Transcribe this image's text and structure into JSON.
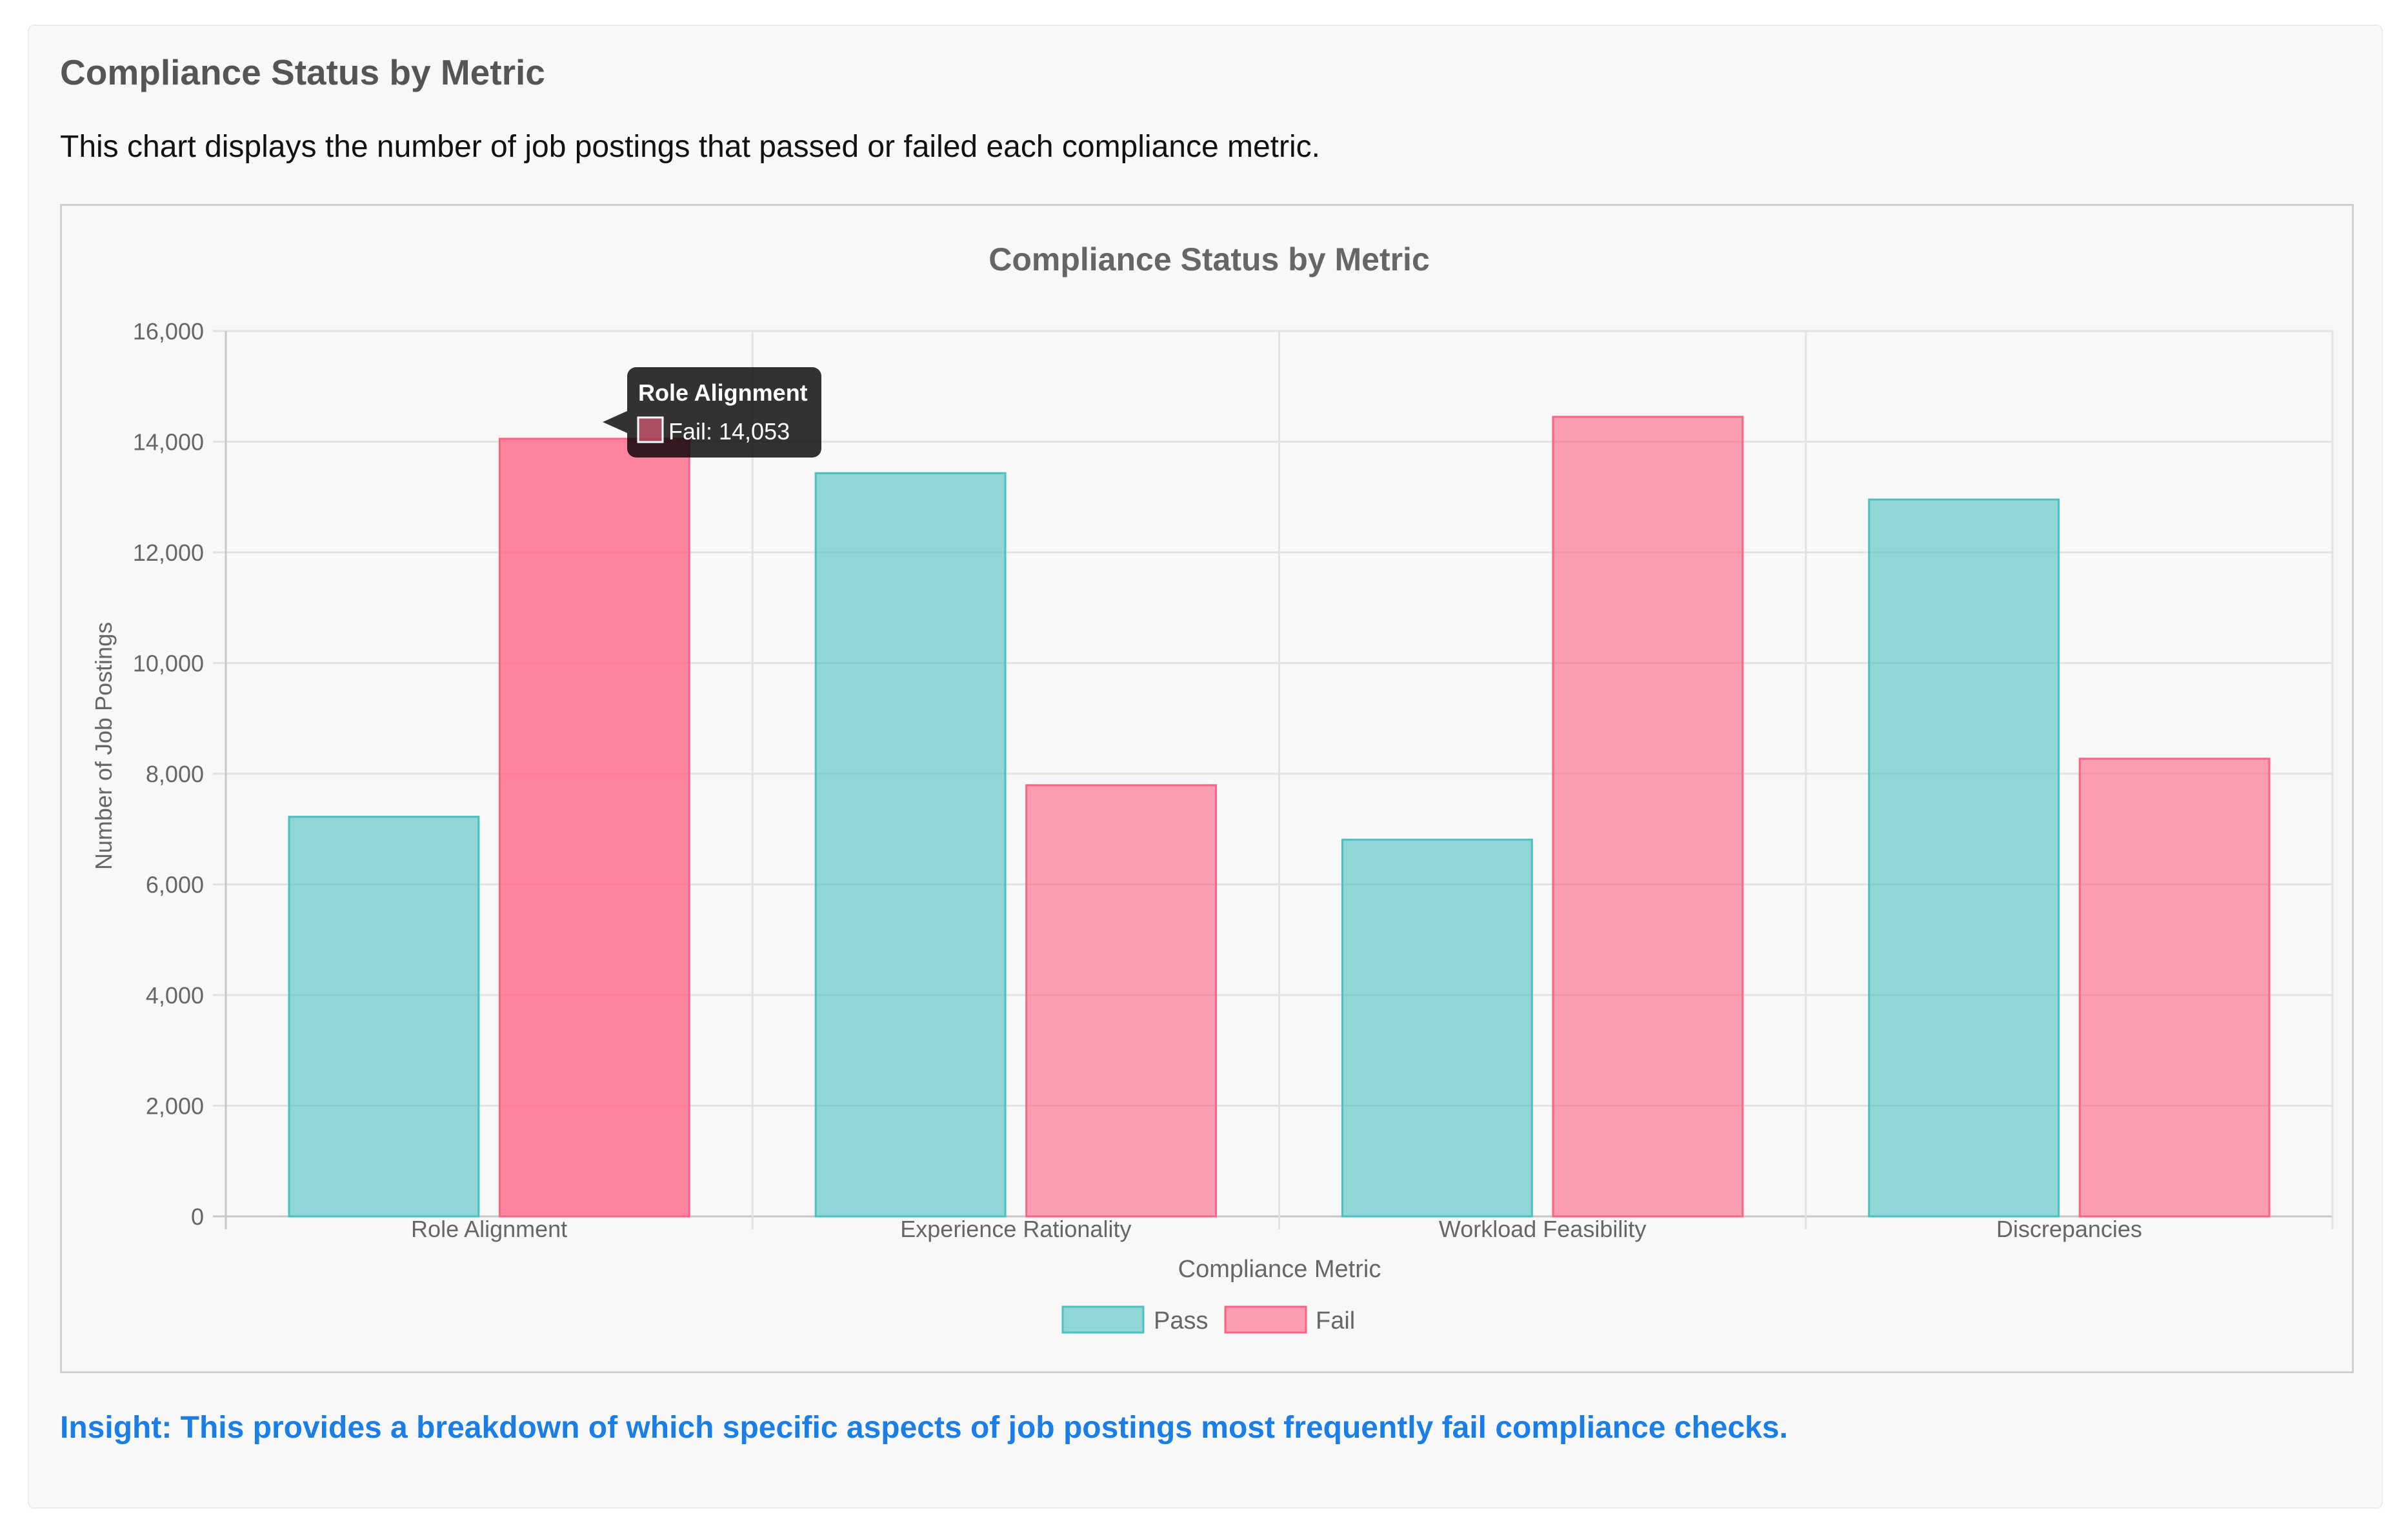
{
  "card": {
    "heading": "Compliance Status by Metric",
    "description": "This chart displays the number of job postings that passed or failed each compliance metric.",
    "insight": "Insight: This provides a breakdown of which specific aspects of job postings most frequently fail compliance checks."
  },
  "tooltip": {
    "title": "Role Alignment",
    "label": "Fail: 14,053",
    "swatch_color": "#ff6384"
  },
  "chart_data": {
    "type": "bar",
    "title": "Compliance Status by Metric",
    "xlabel": "Compliance Metric",
    "ylabel": "Number of Job Postings",
    "categories": [
      "Role Alignment",
      "Experience Rationality",
      "Workload Feasibility",
      "Discrepancies"
    ],
    "series": [
      {
        "name": "Pass",
        "values": [
          7222,
          13432,
          6808,
          12955
        ],
        "color": "#4bc0c0"
      },
      {
        "name": "Fail",
        "values": [
          14053,
          7792,
          14450,
          8271
        ],
        "color": "#ff6384"
      }
    ],
    "ylim": [
      0,
      16000
    ],
    "yticks": [
      "0",
      "2,000",
      "4,000",
      "6,000",
      "8,000",
      "10,000",
      "12,000",
      "14,000",
      "16,000"
    ],
    "grid": true,
    "legend": "bottom",
    "highlighted": {
      "series": "Fail",
      "category": "Role Alignment"
    }
  }
}
